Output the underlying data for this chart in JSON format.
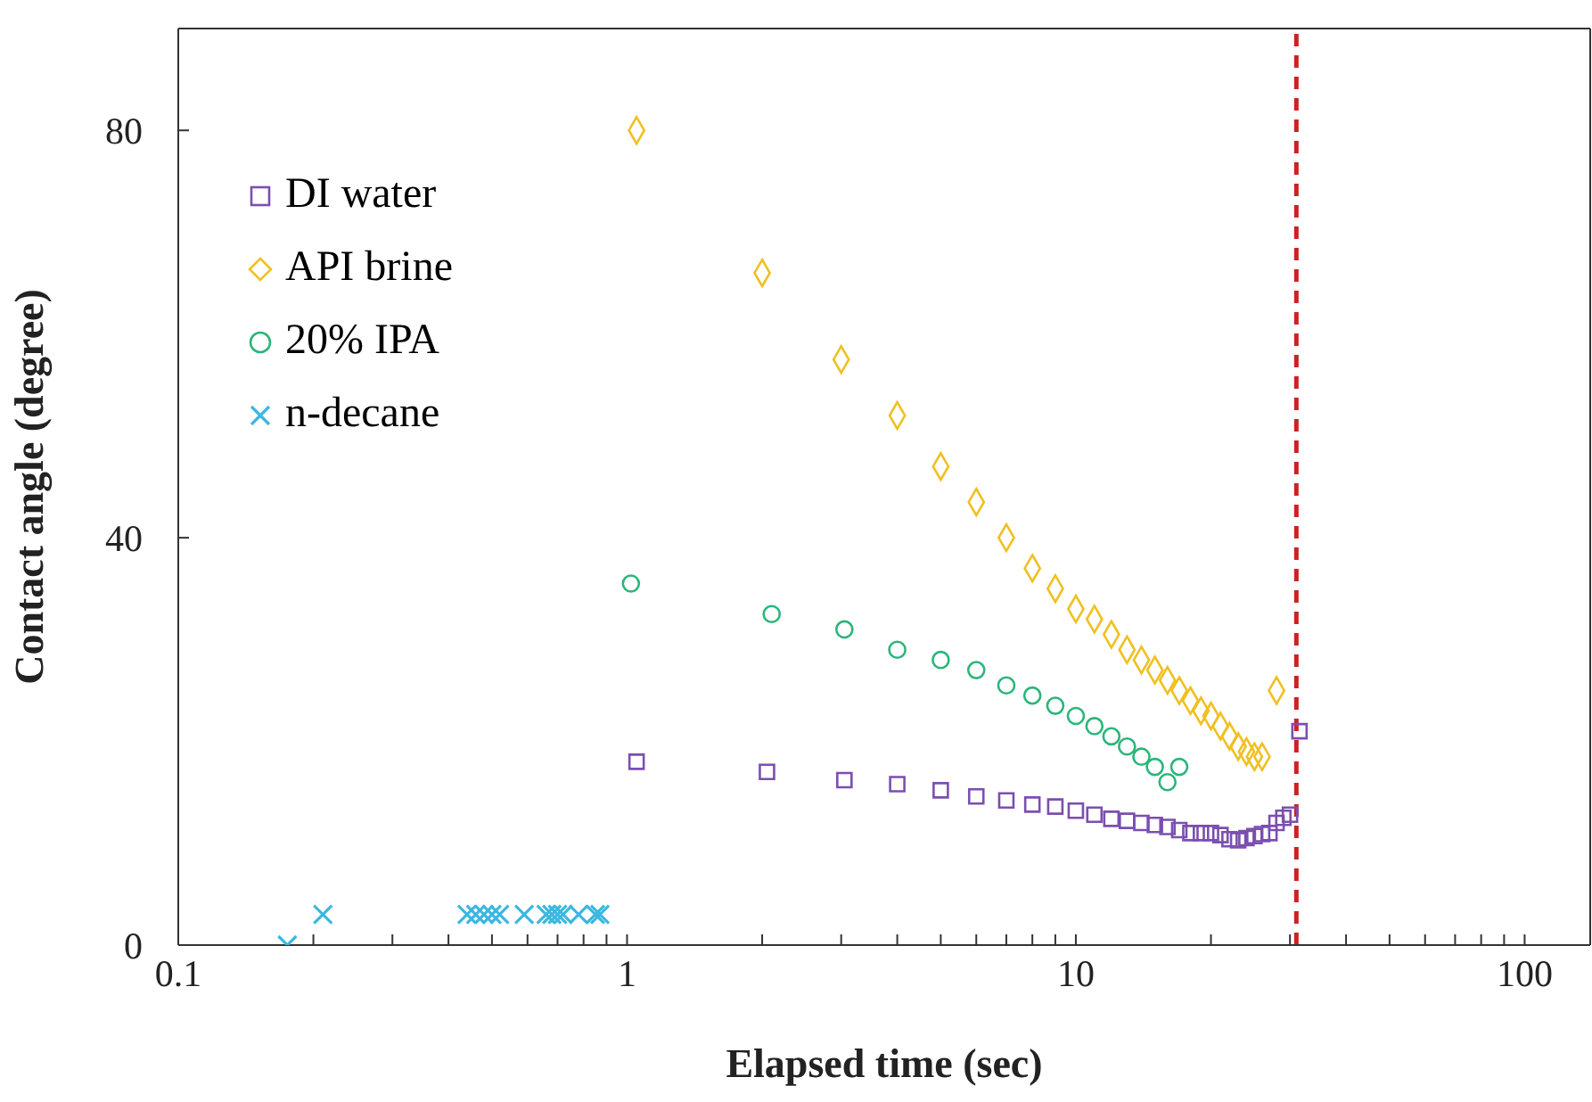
{
  "chart_data": {
    "type": "scatter",
    "xlabel": "Elapsed time (sec)",
    "ylabel": "Contact angle (degree)",
    "log": "x",
    "grid": false,
    "legend": "top left",
    "xlim": [
      0.1,
      140
    ],
    "ylim": [
      0,
      90
    ],
    "yticks": [
      0,
      40,
      80
    ],
    "xticks": [
      0.1,
      {
        "value": 0.2,
        "label": null
      },
      {
        "value": 0.3,
        "label": null
      },
      {
        "value": 0.4,
        "label": null
      },
      {
        "value": 0.5,
        "label": null
      },
      {
        "value": 0.6,
        "label": null
      },
      {
        "value": 0.7,
        "label": null
      },
      {
        "value": 0.8,
        "label": null
      },
      {
        "value": 0.9,
        "label": null
      },
      1,
      {
        "value": 2,
        "label": null
      },
      {
        "value": 3,
        "label": null
      },
      {
        "value": 4,
        "label": null
      },
      {
        "value": 5,
        "label": null
      },
      {
        "value": 6,
        "label": null
      },
      {
        "value": 7,
        "label": null
      },
      {
        "value": 8,
        "label": null
      },
      {
        "value": 9,
        "label": null
      },
      10,
      {
        "value": 20,
        "label": null
      },
      {
        "value": 30,
        "label": null
      },
      {
        "value": 40,
        "label": null
      },
      {
        "value": 50,
        "label": null
      },
      {
        "value": 60,
        "label": null
      },
      {
        "value": 70,
        "label": null
      },
      {
        "value": 80,
        "label": null
      },
      {
        "value": 90,
        "label": null
      },
      100
    ],
    "series": [
      {
        "name": "DI water",
        "color": "#7b4fb0",
        "marker": "square",
        "x": [
          1.05,
          2.05,
          3.05,
          4,
          5,
          6,
          7,
          8,
          9,
          10,
          11,
          12,
          13,
          14,
          15,
          16,
          17,
          18,
          19,
          20,
          21,
          22,
          23,
          24,
          25,
          26,
          27,
          28,
          29,
          30,
          31.5
        ],
        "values": [
          18,
          17,
          16.2,
          15.8,
          15.2,
          14.6,
          14.2,
          13.8,
          13.6,
          13.2,
          12.8,
          12.4,
          12.2,
          12,
          11.8,
          11.6,
          11.3,
          11,
          11,
          11,
          10.8,
          10.4,
          10.3,
          10.5,
          10.7,
          10.9,
          11,
          12,
          12.5,
          12.8,
          21
        ]
      },
      {
        "name": "API brine",
        "color": "#f0c020",
        "marker": "diamond",
        "x": [
          1.05,
          2,
          3,
          4,
          5,
          6,
          7,
          8,
          9,
          10,
          11,
          12,
          13,
          14,
          15,
          16,
          17,
          18,
          19,
          20,
          21,
          22,
          23,
          24,
          25,
          26,
          28
        ],
        "values": [
          80,
          66,
          57.5,
          52,
          47,
          43.5,
          40,
          37,
          35,
          33,
          32,
          30.5,
          29,
          28,
          27,
          26,
          25,
          24,
          23,
          22.5,
          21.5,
          20.5,
          19.5,
          19,
          18.5,
          18.5,
          25
        ]
      },
      {
        "name": "20% IPA",
        "color": "#2bb67a",
        "marker": "circle",
        "x": [
          1.02,
          2.1,
          3.05,
          4,
          5,
          6,
          7,
          8,
          9,
          10,
          11,
          12,
          13,
          14,
          15,
          16,
          17
        ],
        "values": [
          35.5,
          32.5,
          31,
          29,
          28,
          27,
          25.5,
          24.5,
          23.5,
          22.5,
          21.5,
          20.5,
          19.5,
          18.5,
          17.5,
          16,
          17.5
        ]
      },
      {
        "name": "n-decane",
        "color": "#3ab8e0",
        "marker": "cross",
        "x": [
          0.175,
          0.21,
          0.44,
          0.46,
          0.48,
          0.5,
          0.52,
          0.59,
          0.66,
          0.68,
          0.7,
          0.72,
          0.78,
          0.85,
          0.87
        ],
        "values": [
          0,
          3,
          3,
          3,
          3,
          3,
          3,
          3,
          3,
          3,
          3,
          3,
          3,
          3,
          3
        ]
      }
    ],
    "ref_lines": [
      {
        "axis": "x",
        "value": 31,
        "color": "#cc2222",
        "line_style": "dashed"
      }
    ]
  }
}
